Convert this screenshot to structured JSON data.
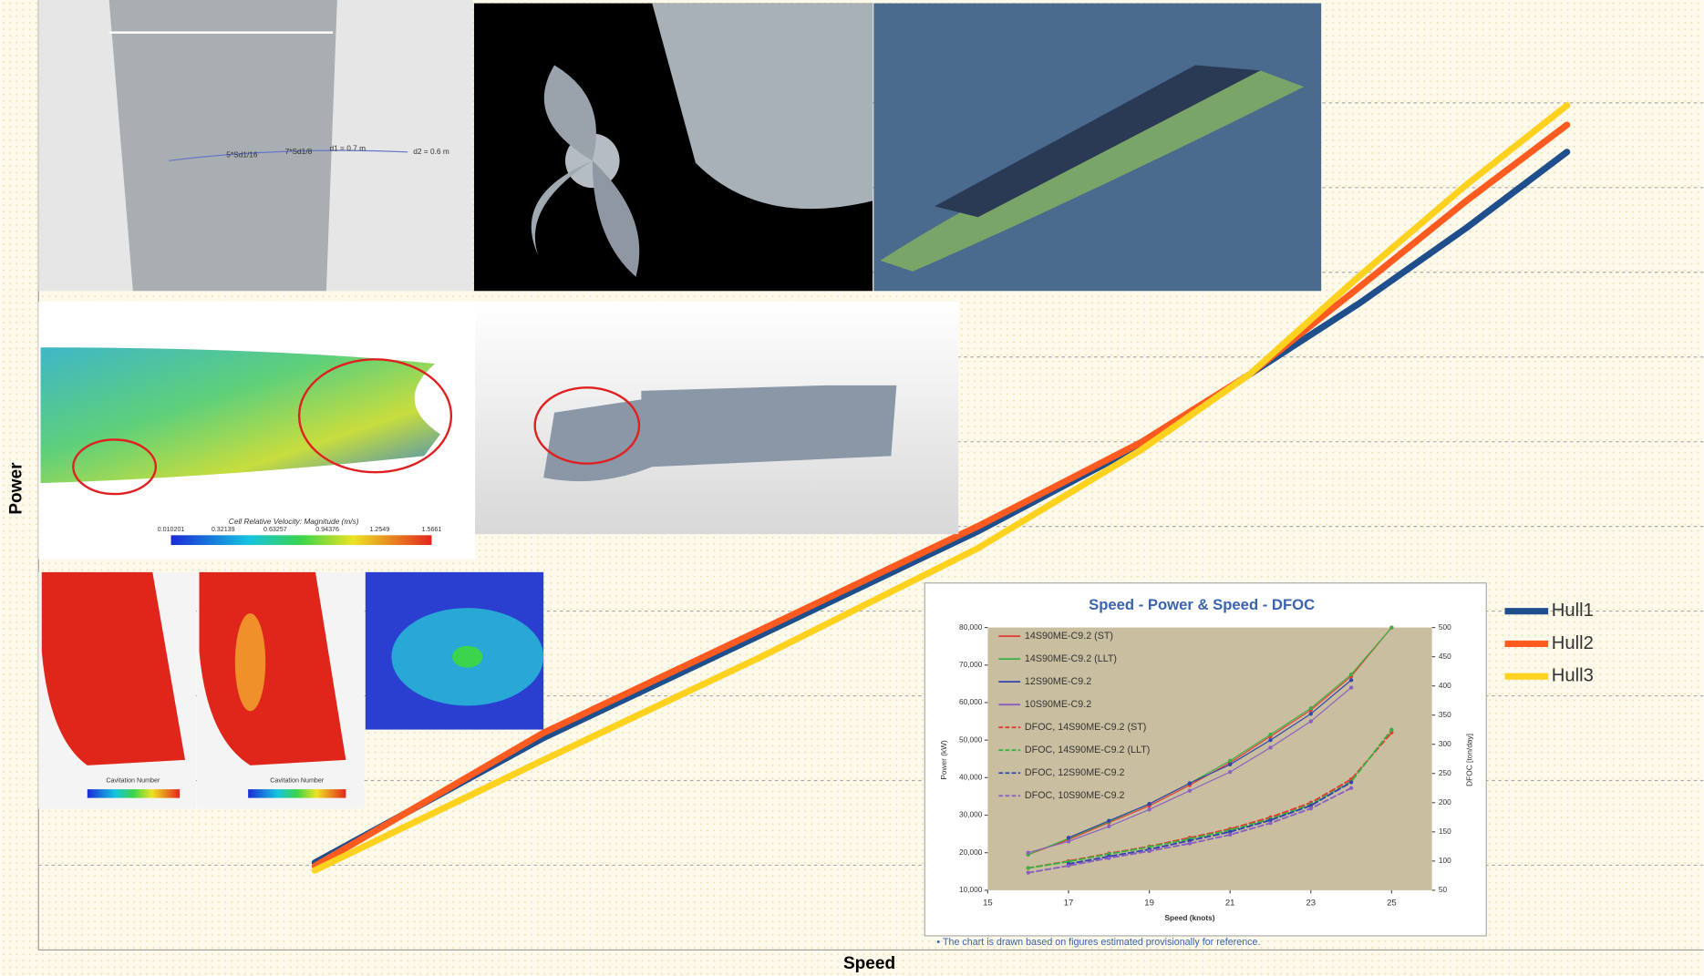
{
  "chart_data": [
    {
      "type": "line",
      "xlabel": "Speed",
      "ylabel": "Power",
      "x": [
        16.6,
        30.3,
        43.4,
        56.4,
        66.2,
        72.7,
        79.3,
        85.8,
        91.8
      ],
      "xlim": [
        0,
        100
      ],
      "ylim": [
        0,
        111.5
      ],
      "ygrid": [
        10,
        20,
        30,
        40,
        50,
        60,
        70,
        80,
        90,
        100
      ],
      "legend": "right",
      "series": [
        {
          "name": "Hull1",
          "color": "#1f4e8c",
          "values": [
            10.3,
            25.0,
            37.2,
            49.4,
            59.6,
            67.9,
            76.3,
            85.3,
            94.2
          ]
        },
        {
          "name": "Hull2",
          "color": "#ff5a1f",
          "values": [
            9.9,
            25.6,
            37.8,
            50.0,
            59.9,
            67.9,
            78.2,
            88.5,
            97.4
          ]
        },
        {
          "name": "Hull3",
          "color": "#ffd21f",
          "values": [
            9.4,
            22.4,
            34.6,
            47.4,
            59.0,
            67.9,
            79.5,
            90.4,
            99.7
          ]
        }
      ]
    },
    {
      "type": "line",
      "title": "Speed - Power  &  Speed - DFOC",
      "xlabel": "Speed (knots)",
      "ylabel": "Power (kW)",
      "y2label": "DFOC [ton/day]",
      "note": "• The chart is drawn based on figures estimated provisionally for reference.",
      "x": [
        16,
        17,
        18,
        19,
        20,
        21,
        22,
        23,
        24,
        25
      ],
      "xlim": [
        15,
        26
      ],
      "xticks": [
        15,
        17,
        19,
        21,
        23,
        25
      ],
      "ylim": [
        10000,
        80000
      ],
      "yticks": [
        {
          "value": 10000,
          "label": "10,000"
        },
        {
          "value": 20000,
          "label": "20,000"
        },
        {
          "value": 30000,
          "label": "30,000"
        },
        {
          "value": 40000,
          "label": "40,000"
        },
        {
          "value": 50000,
          "label": "50,000"
        },
        {
          "value": 60000,
          "label": "60,000"
        },
        {
          "value": 70000,
          "label": "70,000"
        },
        {
          "value": 80000,
          "label": "80,000"
        }
      ],
      "y2lim": [
        50,
        500
      ],
      "y2ticks": [
        50,
        100,
        150,
        200,
        250,
        300,
        350,
        400,
        450,
        500
      ],
      "legend": "upper left",
      "series": [
        {
          "name": "14S90ME-C9.2 (ST)",
          "color": "#e03c31",
          "values": [
            19500,
            23500,
            28000,
            32500,
            38000,
            44000,
            51000,
            58000,
            67000,
            80000
          ]
        },
        {
          "name": "14S90ME-C9.2 (LLT)",
          "color": "#3cb043",
          "values": [
            19500,
            23800,
            28300,
            33000,
            38500,
            44500,
            51500,
            58500,
            67500,
            80000
          ]
        },
        {
          "name": "12S90ME-C9.2",
          "color": "#3344aa",
          "values": [
            null,
            24000,
            28500,
            33000,
            38500,
            43500,
            50000,
            57000,
            66000,
            null
          ]
        },
        {
          "name": "10S90ME-C9.2",
          "color": "#8a5fbf",
          "values": [
            20000,
            23000,
            27000,
            31500,
            36500,
            41500,
            48000,
            55000,
            64000,
            null
          ]
        },
        {
          "name": "DFOC, 14S90ME-C9.2 (ST)",
          "color": "#e03c31",
          "axis": "y2",
          "dashed": true,
          "values": [
            88,
            100,
            113,
            125,
            140,
            155,
            175,
            200,
            240,
            320
          ]
        },
        {
          "name": "DFOC, 14S90ME-C9.2 (LLT)",
          "color": "#3cb043",
          "axis": "y2",
          "dashed": true,
          "values": [
            88,
            99,
            112,
            124,
            138,
            153,
            172,
            197,
            236,
            325
          ]
        },
        {
          "name": "DFOC, 12S90ME-C9.2",
          "color": "#3344aa",
          "axis": "y2",
          "dashed": true,
          "values": [
            null,
            95,
            108,
            120,
            135,
            150,
            170,
            195,
            235,
            null
          ]
        },
        {
          "name": "DFOC, 10S90ME-C9.2",
          "color": "#8a5fbf",
          "axis": "y2",
          "dashed": true,
          "values": [
            80,
            92,
            105,
            117,
            130,
            145,
            165,
            190,
            225,
            null
          ]
        }
      ]
    }
  ],
  "images": {
    "rudder_labels": [
      "5*Sd1/16",
      "7*Sd1/8",
      "d1 = 0.7 m",
      "d2 = 0.6 m"
    ],
    "colorbar_title": "Cell Relative Velocity: Magnitude (m/s)",
    "colorbar_values": [
      "0.010201",
      "0.32139",
      "0.63257",
      "0.94376",
      "1.2549",
      "1.5661"
    ],
    "cavitation_labels": [
      "Cavitation Number",
      "Cavitation Number"
    ]
  }
}
